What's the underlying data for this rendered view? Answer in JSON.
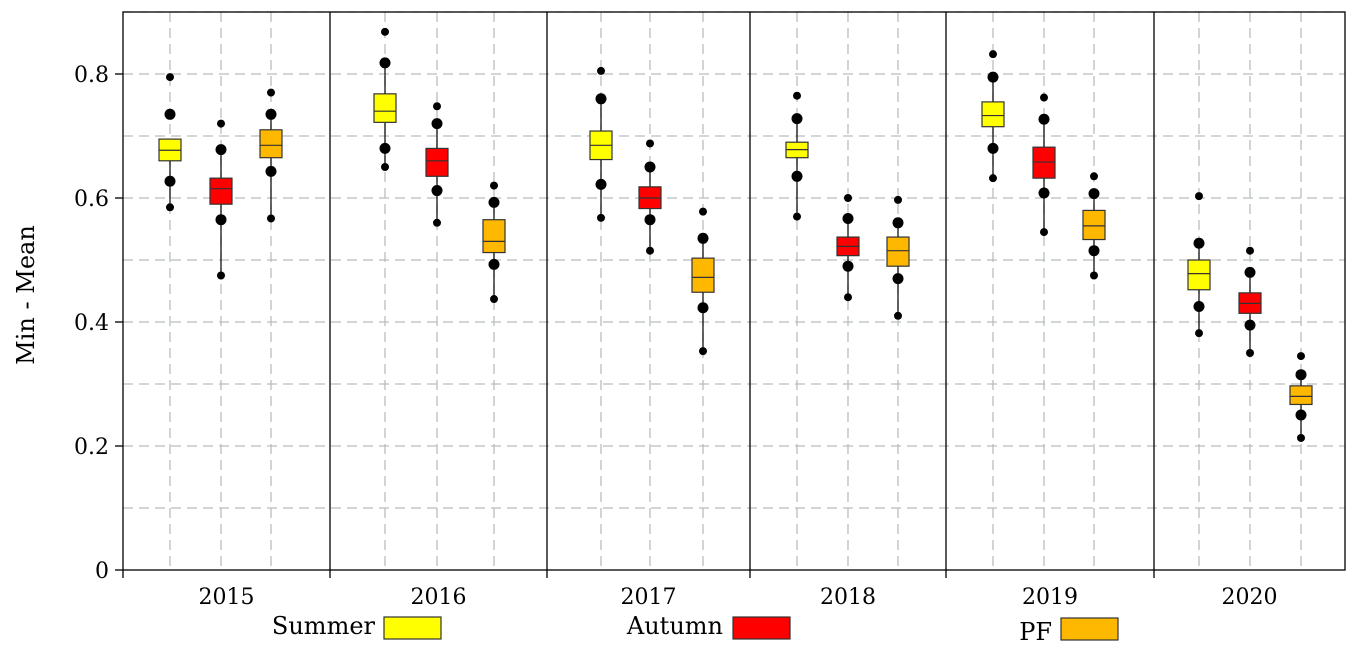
{
  "chart_data": {
    "type": "box",
    "ylabel": "Min - Mean",
    "xlabel": "",
    "ylim": [
      0,
      0.9
    ],
    "yticks": [
      "0",
      "0.2",
      "0.4",
      "0.6",
      "0.8"
    ],
    "grid": true,
    "legend_position": "bottom",
    "categories": [
      "2015",
      "2016",
      "2017",
      "2018",
      "2019",
      "2020"
    ],
    "series": [
      {
        "name": "Summer",
        "color": "#ffff00",
        "boxes": [
          {
            "min": 0.585,
            "q1": 0.66,
            "median": 0.677,
            "q3": 0.695,
            "max": 0.695,
            "outliers": [
              0.795,
              0.735,
              0.627,
              0.585
            ]
          },
          {
            "min": 0.65,
            "q1": 0.722,
            "median": 0.74,
            "q3": 0.768,
            "max": 0.82,
            "outliers": [
              0.868,
              0.818,
              0.68,
              0.65
            ]
          },
          {
            "min": 0.568,
            "q1": 0.662,
            "median": 0.685,
            "q3": 0.708,
            "max": 0.762,
            "outliers": [
              0.805,
              0.76,
              0.622,
              0.568
            ]
          },
          {
            "min": 0.57,
            "q1": 0.665,
            "median": 0.678,
            "q3": 0.69,
            "max": 0.73,
            "outliers": [
              0.765,
              0.728,
              0.635,
              0.57
            ]
          },
          {
            "min": 0.632,
            "q1": 0.715,
            "median": 0.733,
            "q3": 0.755,
            "max": 0.795,
            "outliers": [
              0.832,
              0.795,
              0.68,
              0.632
            ]
          },
          {
            "min": 0.382,
            "q1": 0.452,
            "median": 0.478,
            "q3": 0.5,
            "max": 0.528,
            "outliers": [
              0.603,
              0.527,
              0.425,
              0.382
            ]
          }
        ]
      },
      {
        "name": "Autumn",
        "color": "#ff0000",
        "boxes": [
          {
            "min": 0.475,
            "q1": 0.59,
            "median": 0.615,
            "q3": 0.632,
            "max": 0.678,
            "outliers": [
              0.72,
              0.678,
              0.565,
              0.475
            ]
          },
          {
            "min": 0.56,
            "q1": 0.635,
            "median": 0.66,
            "q3": 0.68,
            "max": 0.72,
            "outliers": [
              0.748,
              0.72,
              0.612,
              0.56
            ]
          },
          {
            "min": 0.515,
            "q1": 0.583,
            "median": 0.6,
            "q3": 0.618,
            "max": 0.65,
            "outliers": [
              0.688,
              0.65,
              0.565,
              0.515
            ]
          },
          {
            "min": 0.44,
            "q1": 0.507,
            "median": 0.522,
            "q3": 0.537,
            "max": 0.567,
            "outliers": [
              0.6,
              0.567,
              0.49,
              0.44
            ]
          },
          {
            "min": 0.545,
            "q1": 0.632,
            "median": 0.658,
            "q3": 0.682,
            "max": 0.727,
            "outliers": [
              0.762,
              0.727,
              0.608,
              0.545
            ]
          },
          {
            "min": 0.35,
            "q1": 0.414,
            "median": 0.43,
            "q3": 0.447,
            "max": 0.48,
            "outliers": [
              0.515,
              0.48,
              0.395,
              0.35
            ]
          }
        ]
      },
      {
        "name": "PF",
        "color": "#ffb800",
        "boxes": [
          {
            "min": 0.567,
            "q1": 0.665,
            "median": 0.685,
            "q3": 0.71,
            "max": 0.735,
            "outliers": [
              0.77,
              0.735,
              0.643,
              0.567
            ]
          },
          {
            "min": 0.437,
            "q1": 0.512,
            "median": 0.53,
            "q3": 0.565,
            "max": 0.593,
            "outliers": [
              0.62,
              0.593,
              0.493,
              0.437
            ]
          },
          {
            "min": 0.353,
            "q1": 0.448,
            "median": 0.472,
            "q3": 0.503,
            "max": 0.535,
            "outliers": [
              0.578,
              0.535,
              0.423,
              0.353
            ]
          },
          {
            "min": 0.41,
            "q1": 0.49,
            "median": 0.515,
            "q3": 0.537,
            "max": 0.56,
            "outliers": [
              0.597,
              0.56,
              0.47,
              0.41
            ]
          },
          {
            "min": 0.475,
            "q1": 0.533,
            "median": 0.555,
            "q3": 0.58,
            "max": 0.607,
            "outliers": [
              0.635,
              0.607,
              0.515,
              0.475
            ]
          },
          {
            "min": 0.213,
            "q1": 0.267,
            "median": 0.28,
            "q3": 0.297,
            "max": 0.315,
            "outliers": [
              0.345,
              0.315,
              0.25,
              0.213
            ]
          }
        ]
      }
    ],
    "legend": [
      {
        "label": "Summer",
        "color": "#ffff00"
      },
      {
        "label": "Autumn",
        "color": "#ff0000"
      },
      {
        "label": "PF",
        "color": "#ffb800"
      }
    ]
  }
}
